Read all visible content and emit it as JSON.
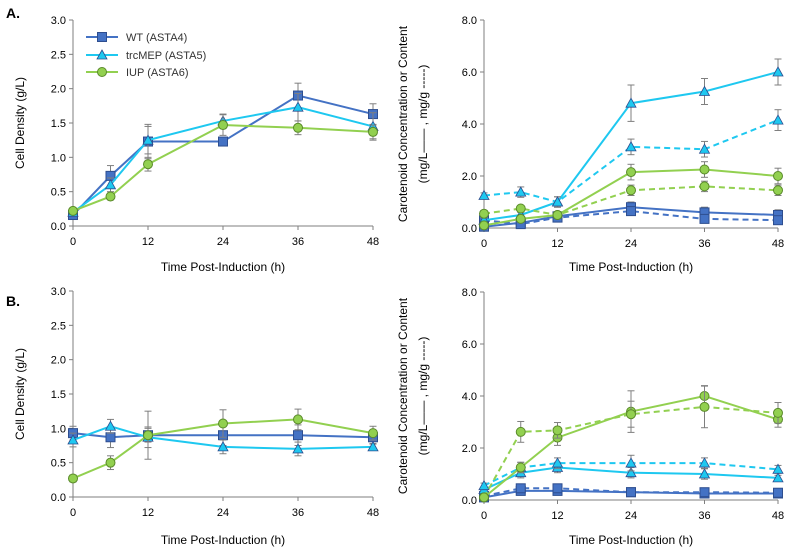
{
  "colors": {
    "wt": "#4472c4",
    "trc": "#1ec8f0",
    "iup": "#92d050",
    "marker_edge": "#2e4e8f"
  },
  "panels": [
    {
      "id": "A",
      "label": "A."
    },
    {
      "id": "B",
      "label": "B."
    }
  ],
  "legend": [
    {
      "key": "wt",
      "label": "WT (ASTA4)",
      "marker": "square-icon"
    },
    {
      "key": "trc",
      "label": "trcMEP (ASTA5)",
      "marker": "triangle-icon"
    },
    {
      "key": "iup",
      "label": "IUP (ASTA6)",
      "marker": "circle-icon"
    }
  ],
  "chart_data": [
    {
      "id": "A-density",
      "type": "line",
      "xlabel": "Time Post-Induction (h)",
      "ylabel": "Cell Density (g/L)",
      "xlim": [
        0,
        48
      ],
      "ylim": [
        0,
        3
      ],
      "xticks": [
        0,
        12,
        24,
        36,
        48
      ],
      "xtick_labels": [
        "0",
        "12",
        "24",
        "36",
        "48"
      ],
      "yticks": [
        0,
        0.5,
        1,
        1.5,
        2,
        2.5,
        3
      ],
      "ytick_labels": [
        "0.0",
        "0.5",
        "1.0",
        "1.5",
        "2.0",
        "2.5",
        "3.0"
      ],
      "series": [
        {
          "name": "WT (ASTA4)",
          "key": "wt",
          "dash": false,
          "marker": "square",
          "x": [
            0,
            6,
            12,
            24,
            36,
            48
          ],
          "y": [
            0.16,
            0.73,
            1.23,
            1.23,
            1.9,
            1.63
          ],
          "err": [
            0.05,
            0.15,
            0.25,
            0.05,
            0.18,
            0.15
          ]
        },
        {
          "name": "trcMEP (ASTA5)",
          "key": "trc",
          "dash": false,
          "marker": "triangle",
          "x": [
            0,
            6,
            12,
            24,
            36,
            48
          ],
          "y": [
            0.2,
            0.6,
            1.25,
            1.53,
            1.73,
            1.45
          ],
          "err": [
            0.04,
            0.1,
            0.2,
            0.1,
            0.2,
            0.2
          ]
        },
        {
          "name": "IUP (ASTA6)",
          "key": "iup",
          "dash": false,
          "marker": "circle",
          "x": [
            0,
            6,
            12,
            24,
            36,
            48
          ],
          "y": [
            0.22,
            0.43,
            0.9,
            1.47,
            1.43,
            1.37
          ],
          "err": [
            0.04,
            0.05,
            0.1,
            0.15,
            0.1,
            0.1
          ]
        }
      ]
    },
    {
      "id": "A-carotenoid",
      "type": "line",
      "xlabel": "Time Post-Induction (h)",
      "ylabel": "Carotenoid Concentration or Content",
      "ylabel2": "(mg/L—— , mg/g -----)",
      "xlim": [
        0,
        48
      ],
      "ylim": [
        0,
        8
      ],
      "xticks": [
        0,
        12,
        24,
        36,
        48
      ],
      "xtick_labels": [
        "0",
        "12",
        "24",
        "36",
        "48"
      ],
      "yticks": [
        0,
        2,
        4,
        6,
        8
      ],
      "ytick_labels": [
        "0.0",
        "2.0",
        "4.0",
        "6.0",
        "8.0"
      ],
      "series": [
        {
          "name": "WT mg/L",
          "key": "wt",
          "dash": false,
          "marker": "square",
          "x": [
            0,
            6,
            12,
            24,
            36,
            48
          ],
          "y": [
            0.05,
            0.2,
            0.45,
            0.8,
            0.6,
            0.5
          ],
          "err": [
            0.05,
            0.05,
            0.1,
            0.2,
            0.2,
            0.2
          ]
        },
        {
          "name": "WT mg/g",
          "key": "wt",
          "dash": true,
          "marker": "square",
          "x": [
            0,
            6,
            12,
            24,
            36,
            48
          ],
          "y": [
            0.3,
            0.15,
            0.4,
            0.65,
            0.35,
            0.3
          ],
          "err": [
            0.05,
            0.05,
            0.1,
            0.1,
            0.1,
            0.1
          ]
        },
        {
          "name": "trcMEP mg/L",
          "key": "trc",
          "dash": false,
          "marker": "triangle",
          "x": [
            0,
            6,
            12,
            24,
            36,
            48
          ],
          "y": [
            0.3,
            0.5,
            1.0,
            4.8,
            5.25,
            6.0
          ],
          "err": [
            0.1,
            0.1,
            0.2,
            0.7,
            0.5,
            0.5
          ]
        },
        {
          "name": "trcMEP mg/g",
          "key": "trc",
          "dash": true,
          "marker": "triangle",
          "x": [
            0,
            6,
            12,
            24,
            36,
            48
          ],
          "y": [
            1.25,
            1.38,
            1.0,
            3.12,
            3.03,
            4.15
          ],
          "err": [
            0.1,
            0.2,
            0.2,
            0.3,
            0.3,
            0.4
          ]
        },
        {
          "name": "IUP mg/L",
          "key": "iup",
          "dash": false,
          "marker": "circle",
          "x": [
            0,
            6,
            12,
            24,
            36,
            48
          ],
          "y": [
            0.1,
            0.35,
            0.5,
            2.15,
            2.25,
            2.0
          ],
          "err": [
            0.05,
            0.1,
            0.1,
            0.3,
            0.3,
            0.3
          ]
        },
        {
          "name": "IUP mg/g",
          "key": "iup",
          "dash": true,
          "marker": "circle",
          "x": [
            0,
            6,
            12,
            24,
            36,
            48
          ],
          "y": [
            0.55,
            0.75,
            0.5,
            1.45,
            1.6,
            1.45
          ],
          "err": [
            0.1,
            0.1,
            0.1,
            0.2,
            0.2,
            0.2
          ]
        }
      ]
    },
    {
      "id": "B-density",
      "type": "line",
      "xlabel": "Time Post-Induction (h)",
      "ylabel": "Cell Density (g/L)",
      "xlim": [
        0,
        48
      ],
      "ylim": [
        0,
        3
      ],
      "xticks": [
        0,
        12,
        24,
        36,
        48
      ],
      "xtick_labels": [
        "0",
        "12",
        "24",
        "36",
        "48"
      ],
      "yticks": [
        0,
        0.5,
        1,
        1.5,
        2,
        2.5,
        3
      ],
      "ytick_labels": [
        "0.0",
        "0.5",
        "1.0",
        "1.5",
        "2.0",
        "2.5",
        "3.0"
      ],
      "series": [
        {
          "name": "WT (ASTA4)",
          "key": "wt",
          "dash": false,
          "marker": "square",
          "x": [
            0,
            6,
            12,
            24,
            36,
            48
          ],
          "y": [
            0.93,
            0.87,
            0.9,
            0.9,
            0.9,
            0.87
          ],
          "err": [
            0.1,
            0.15,
            0.35,
            0.15,
            0.15,
            0.1
          ]
        },
        {
          "name": "trcMEP (ASTA5)",
          "key": "trc",
          "dash": false,
          "marker": "triangle",
          "x": [
            0,
            6,
            12,
            24,
            36,
            48
          ],
          "y": [
            0.83,
            1.03,
            0.87,
            0.73,
            0.7,
            0.73
          ],
          "err": [
            0.1,
            0.1,
            0.15,
            0.1,
            0.1,
            0.05
          ]
        },
        {
          "name": "IUP (ASTA6)",
          "key": "iup",
          "dash": false,
          "marker": "circle",
          "x": [
            0,
            6,
            12,
            24,
            36,
            48
          ],
          "y": [
            0.27,
            0.5,
            0.9,
            1.07,
            1.13,
            0.93
          ],
          "err": [
            0.05,
            0.1,
            0.1,
            0.2,
            0.15,
            0.1
          ]
        }
      ]
    },
    {
      "id": "B-carotenoid",
      "type": "line",
      "xlabel": "Time Post-Induction (h)",
      "ylabel": "Carotenoid Concentration or Content",
      "ylabel2": "(mg/L—— , mg/g -----)",
      "xlim": [
        0,
        48
      ],
      "ylim": [
        0,
        8
      ],
      "xticks": [
        0,
        12,
        24,
        36,
        48
      ],
      "xtick_labels": [
        "0",
        "12",
        "24",
        "36",
        "48"
      ],
      "yticks": [
        0,
        2,
        4,
        6,
        8
      ],
      "ytick_labels": [
        "0.0",
        "2.0",
        "4.0",
        "6.0",
        "8.0"
      ],
      "series": [
        {
          "name": "WT mg/L",
          "key": "wt",
          "dash": false,
          "marker": "square",
          "x": [
            0,
            6,
            12,
            24,
            36,
            48
          ],
          "y": [
            0.1,
            0.35,
            0.35,
            0.3,
            0.25,
            0.25
          ],
          "err": [
            0.05,
            0.1,
            0.1,
            0.1,
            0.1,
            0.05
          ]
        },
        {
          "name": "WT mg/g",
          "key": "wt",
          "dash": true,
          "marker": "square",
          "x": [
            0,
            6,
            12,
            24,
            36,
            48
          ],
          "y": [
            0.15,
            0.45,
            0.45,
            0.3,
            0.3,
            0.28
          ],
          "err": [
            0.05,
            0.15,
            0.15,
            0.1,
            0.1,
            0.1
          ]
        },
        {
          "name": "trcMEP mg/L",
          "key": "trc",
          "dash": false,
          "marker": "triangle",
          "x": [
            0,
            6,
            12,
            24,
            36,
            48
          ],
          "y": [
            0.4,
            1.05,
            1.25,
            1.05,
            1.0,
            0.85
          ],
          "err": [
            0.1,
            0.2,
            0.2,
            0.2,
            0.2,
            0.1
          ]
        },
        {
          "name": "trcMEP mg/g",
          "key": "trc",
          "dash": true,
          "marker": "triangle",
          "x": [
            0,
            6,
            12,
            24,
            36,
            48
          ],
          "y": [
            0.55,
            1.25,
            1.42,
            1.42,
            1.42,
            1.18
          ],
          "err": [
            0.1,
            0.2,
            0.2,
            0.3,
            0.2,
            0.15
          ]
        },
        {
          "name": "IUP mg/L",
          "key": "iup",
          "dash": false,
          "marker": "circle",
          "x": [
            0,
            6,
            12,
            24,
            36,
            48
          ],
          "y": [
            0.1,
            1.25,
            2.4,
            3.4,
            4.0,
            3.1
          ],
          "err": [
            0.05,
            0.2,
            0.3,
            0.8,
            0.4,
            0.3
          ]
        },
        {
          "name": "IUP mg/g",
          "key": "iup",
          "dash": true,
          "marker": "circle",
          "x": [
            0,
            6,
            12,
            24,
            36,
            48
          ],
          "y": [
            0.1,
            2.62,
            2.68,
            3.3,
            3.58,
            3.35
          ],
          "err": [
            0.05,
            0.4,
            0.3,
            0.5,
            0.8,
            0.4
          ]
        }
      ]
    }
  ]
}
